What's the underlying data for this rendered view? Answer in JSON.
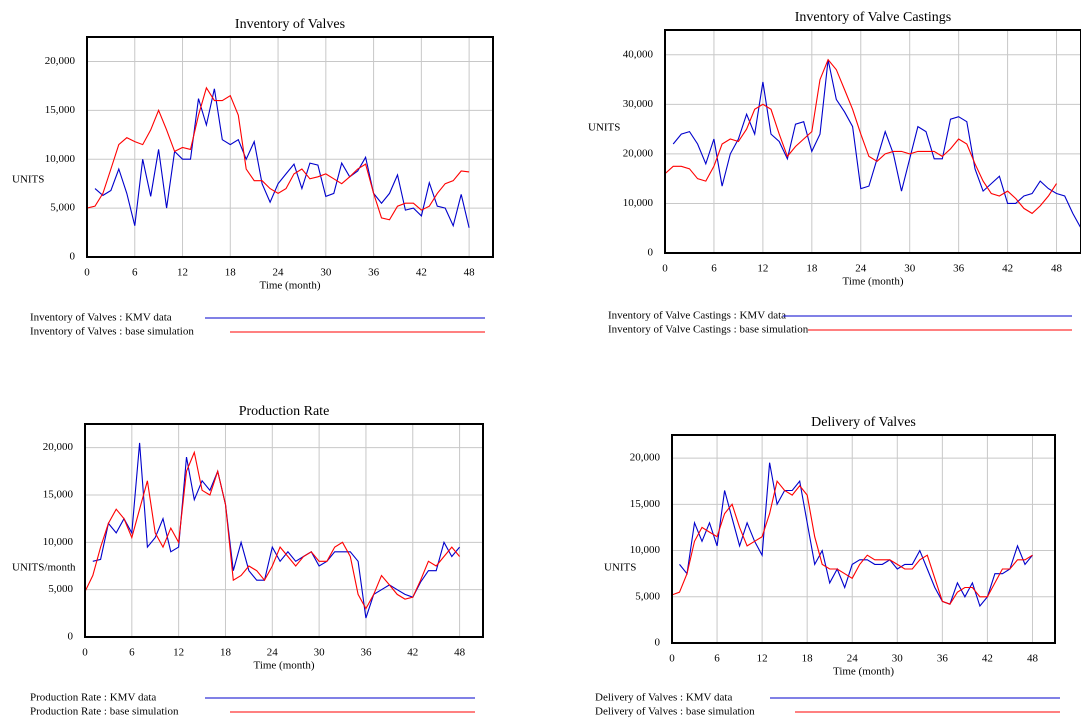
{
  "chart_data": [
    {
      "type": "line",
      "title": "Inventory of Valves",
      "x_label": "Time (month)",
      "y_label": "UNITS",
      "xlim": [
        0,
        51
      ],
      "xticks": [
        0,
        6,
        12,
        18,
        24,
        30,
        36,
        42,
        48
      ],
      "ylim": [
        0,
        22500
      ],
      "yticks": [
        0,
        {
          "value": 5000,
          "label": "5,000"
        },
        {
          "value": 10000,
          "label": "10,000"
        },
        {
          "value": 15000,
          "label": "15,000"
        },
        {
          "value": 20000,
          "label": "20,000"
        }
      ],
      "grid": true,
      "series": [
        {
          "name": "Inventory of Valves : KMV data",
          "color": "#0000cc",
          "x": [
            1,
            2,
            3,
            4,
            5,
            6,
            7,
            8,
            9,
            10,
            11,
            12,
            13,
            14,
            15,
            16,
            17,
            18,
            19,
            20,
            21,
            22,
            23,
            24,
            25,
            26,
            27,
            28,
            29,
            30,
            31,
            32,
            33,
            34,
            35,
            36,
            37,
            38,
            39,
            40,
            41,
            42,
            43,
            44,
            45,
            46,
            47,
            48
          ],
          "values": [
            7000,
            6300,
            6800,
            9000,
            6500,
            3200,
            10000,
            6200,
            11000,
            5000,
            10800,
            10000,
            10000,
            16200,
            13500,
            17200,
            12000,
            11500,
            12000,
            10000,
            11800,
            7500,
            5600,
            7500,
            8500,
            9500,
            7000,
            9600,
            9400,
            6200,
            6500,
            9600,
            8200,
            8800,
            10200,
            6500,
            5500,
            6500,
            8400,
            4800,
            5000,
            4200,
            7600,
            5200,
            5000,
            3200,
            6400,
            3000
          ]
        },
        {
          "name": "Inventory of Valves : base simulation",
          "color": "#ff0000",
          "x": [
            0,
            1,
            2,
            3,
            4,
            5,
            6,
            7,
            8,
            9,
            10,
            11,
            12,
            13,
            14,
            15,
            16,
            17,
            18,
            19,
            20,
            21,
            22,
            23,
            24,
            25,
            26,
            27,
            28,
            29,
            30,
            31,
            32,
            33,
            34,
            35,
            36,
            37,
            38,
            39,
            40,
            41,
            42,
            43,
            44,
            45,
            46,
            47,
            48
          ],
          "values": [
            5000,
            5200,
            6500,
            9000,
            11500,
            12200,
            11800,
            11500,
            13000,
            15000,
            13000,
            10800,
            11200,
            11000,
            14500,
            17300,
            16000,
            16000,
            16500,
            14500,
            9000,
            7800,
            7800,
            7000,
            6500,
            7000,
            8500,
            9000,
            8000,
            8200,
            8500,
            8000,
            7500,
            8200,
            9000,
            9500,
            6500,
            4000,
            3800,
            5200,
            5500,
            5500,
            4800,
            5200,
            6500,
            7500,
            7800,
            8800,
            8700
          ]
        }
      ]
    },
    {
      "type": "line",
      "title": "Inventory of Valve Castings",
      "x_label": "Time (month)",
      "y_label": "UNITS",
      "xlim": [
        0,
        51
      ],
      "xticks": [
        0,
        6,
        12,
        18,
        24,
        30,
        36,
        42,
        48
      ],
      "ylim": [
        0,
        45000
      ],
      "yticks": [
        0,
        {
          "value": 10000,
          "label": "10,000"
        },
        {
          "value": 20000,
          "label": "20,000"
        },
        {
          "value": 30000,
          "label": "30,000"
        },
        {
          "value": 40000,
          "label": "40,000"
        }
      ],
      "grid": true,
      "series": [
        {
          "name": "Inventory of Valve Castings : KMV data",
          "color": "#0000cc",
          "x": [
            1,
            2,
            3,
            4,
            5,
            6,
            7,
            8,
            9,
            10,
            11,
            12,
            13,
            14,
            15,
            16,
            17,
            18,
            19,
            20,
            21,
            22,
            23,
            24,
            25,
            26,
            27,
            28,
            29,
            30,
            31,
            32,
            33,
            34,
            35,
            36,
            37,
            38,
            39,
            40,
            41,
            42,
            43,
            44,
            45,
            46,
            47,
            48,
            49,
            50,
            51
          ],
          "values": [
            22000,
            24000,
            24500,
            22000,
            18000,
            23000,
            13500,
            20000,
            23000,
            28000,
            24000,
            34500,
            24000,
            22500,
            19000,
            26000,
            26500,
            20500,
            24000,
            39000,
            31000,
            28500,
            25500,
            13000,
            13500,
            19000,
            24500,
            20000,
            12500,
            19000,
            25500,
            24500,
            19000,
            19000,
            27000,
            27500,
            26500,
            17000,
            12500,
            14000,
            15500,
            10000,
            10000,
            11500,
            12000,
            14500,
            13000,
            12000,
            11500,
            8000,
            5000
          ]
        },
        {
          "name": "Inventory of Valve Castings : base simulation",
          "color": "#ff0000",
          "x": [
            0,
            1,
            2,
            3,
            4,
            5,
            6,
            7,
            8,
            9,
            10,
            11,
            12,
            13,
            14,
            15,
            16,
            17,
            18,
            19,
            20,
            21,
            22,
            23,
            24,
            25,
            26,
            27,
            28,
            29,
            30,
            31,
            32,
            33,
            34,
            35,
            36,
            37,
            38,
            39,
            40,
            41,
            42,
            43,
            44,
            45,
            46,
            47,
            48
          ],
          "values": [
            16000,
            17500,
            17500,
            17000,
            15000,
            14500,
            17500,
            22000,
            23000,
            22500,
            25000,
            29000,
            30000,
            29000,
            24000,
            19500,
            21500,
            23000,
            24500,
            35000,
            39000,
            37000,
            33000,
            29000,
            24000,
            19500,
            18500,
            20000,
            20500,
            20500,
            20000,
            20500,
            20500,
            20500,
            19500,
            21000,
            23000,
            22000,
            18000,
            14500,
            12000,
            11500,
            12500,
            11000,
            9000,
            8000,
            9500,
            11500,
            14000
          ]
        }
      ]
    },
    {
      "type": "line",
      "title": "Production Rate",
      "x_label": "Time (month)",
      "y_label": "UNITS/month",
      "xlim": [
        0,
        51
      ],
      "xticks": [
        0,
        6,
        12,
        18,
        24,
        30,
        36,
        42,
        48
      ],
      "ylim": [
        0,
        22500
      ],
      "yticks": [
        0,
        {
          "value": 5000,
          "label": "5,000"
        },
        {
          "value": 10000,
          "label": "10,000"
        },
        {
          "value": 15000,
          "label": "15,000"
        },
        {
          "value": 20000,
          "label": "20,000"
        }
      ],
      "grid": true,
      "series": [
        {
          "name": "Production Rate : KMV data",
          "color": "#0000cc",
          "x": [
            1,
            2,
            3,
            4,
            5,
            6,
            7,
            8,
            9,
            10,
            11,
            12,
            13,
            14,
            15,
            16,
            17,
            18,
            19,
            20,
            21,
            22,
            23,
            24,
            25,
            26,
            27,
            28,
            29,
            30,
            31,
            32,
            33,
            34,
            35,
            36,
            37,
            38,
            39,
            40,
            41,
            42,
            43,
            44,
            45,
            46,
            47,
            48
          ],
          "values": [
            8000,
            8200,
            12000,
            11000,
            12500,
            11000,
            20500,
            9500,
            10500,
            12500,
            9000,
            9500,
            19000,
            14500,
            16500,
            15500,
            17500,
            14000,
            7000,
            10000,
            7000,
            6000,
            6000,
            9500,
            8000,
            9000,
            8000,
            8500,
            9000,
            7500,
            8000,
            9000,
            9000,
            9000,
            8000,
            2000,
            4500,
            5000,
            5500,
            5000,
            4500,
            4200,
            5800,
            7000,
            7000,
            10000,
            8500,
            9500
          ]
        },
        {
          "name": "Production Rate : base simulation",
          "color": "#ff0000",
          "x": [
            0,
            1,
            2,
            3,
            4,
            5,
            6,
            7,
            8,
            9,
            10,
            11,
            12,
            13,
            14,
            15,
            16,
            17,
            18,
            19,
            20,
            21,
            22,
            23,
            24,
            25,
            26,
            27,
            28,
            29,
            30,
            31,
            32,
            33,
            34,
            35,
            36,
            37,
            38,
            39,
            40,
            41,
            42,
            43,
            44,
            45,
            46,
            47,
            48
          ],
          "values": [
            4800,
            6500,
            9500,
            12000,
            13500,
            12500,
            10500,
            13500,
            16500,
            11000,
            9500,
            11500,
            10000,
            17500,
            19500,
            15500,
            15000,
            17500,
            14000,
            6000,
            6500,
            7500,
            7000,
            6000,
            7500,
            9500,
            8500,
            7500,
            8500,
            9000,
            8000,
            8000,
            9500,
            10000,
            8500,
            4500,
            3000,
            4500,
            6500,
            5500,
            4500,
            4000,
            4200,
            6000,
            8000,
            7500,
            8500,
            9500,
            8500
          ]
        }
      ]
    },
    {
      "type": "line",
      "title": "Delivery of Valves",
      "x_label": "Time (month)",
      "y_label": "UNITS",
      "xlim": [
        0,
        51
      ],
      "xticks": [
        0,
        6,
        12,
        18,
        24,
        30,
        36,
        42,
        48
      ],
      "ylim": [
        0,
        22500
      ],
      "yticks": [
        0,
        {
          "value": 5000,
          "label": "5,000"
        },
        {
          "value": 10000,
          "label": "10,000"
        },
        {
          "value": 15000,
          "label": "15,000"
        },
        {
          "value": 20000,
          "label": "20,000"
        }
      ],
      "grid": true,
      "series": [
        {
          "name": "Delivery of Valves : KMV data",
          "color": "#0000cc",
          "x": [
            1,
            2,
            3,
            4,
            5,
            6,
            7,
            8,
            9,
            10,
            11,
            12,
            13,
            14,
            15,
            16,
            17,
            18,
            19,
            20,
            21,
            22,
            23,
            24,
            25,
            26,
            27,
            28,
            29,
            30,
            31,
            32,
            33,
            34,
            35,
            36,
            37,
            38,
            39,
            40,
            41,
            42,
            43,
            44,
            45,
            46,
            47,
            48
          ],
          "values": [
            8500,
            7500,
            13000,
            11000,
            13000,
            10500,
            16500,
            13500,
            10500,
            13000,
            11000,
            9500,
            19500,
            15000,
            16500,
            16500,
            17500,
            13000,
            8500,
            10000,
            6500,
            8000,
            6000,
            8500,
            9000,
            9000,
            8500,
            8500,
            9000,
            8000,
            8500,
            8500,
            10000,
            8000,
            6000,
            4500,
            4200,
            6500,
            5000,
            6500,
            4000,
            5000,
            7500,
            7500,
            8000,
            10500,
            8500,
            9500
          ]
        },
        {
          "name": "Delivery of Valves : base simulation",
          "color": "#ff0000",
          "x": [
            0,
            1,
            2,
            3,
            4,
            5,
            6,
            7,
            8,
            9,
            10,
            11,
            12,
            13,
            14,
            15,
            16,
            17,
            18,
            19,
            20,
            21,
            22,
            23,
            24,
            25,
            26,
            27,
            28,
            29,
            30,
            31,
            32,
            33,
            34,
            35,
            36,
            37,
            38,
            39,
            40,
            41,
            42,
            43,
            44,
            45,
            46,
            47,
            48
          ],
          "values": [
            5200,
            5500,
            7500,
            11000,
            12500,
            12000,
            11500,
            14000,
            15000,
            12500,
            10500,
            11000,
            11500,
            14000,
            17500,
            16500,
            16000,
            17000,
            16000,
            11500,
            8500,
            8000,
            8000,
            7500,
            7000,
            8500,
            9500,
            9000,
            9000,
            9000,
            8500,
            8000,
            8000,
            9000,
            9500,
            7000,
            4500,
            4200,
            5500,
            6000,
            6000,
            5000,
            5000,
            6500,
            8000,
            8000,
            9000,
            9000,
            9500
          ]
        }
      ]
    }
  ]
}
